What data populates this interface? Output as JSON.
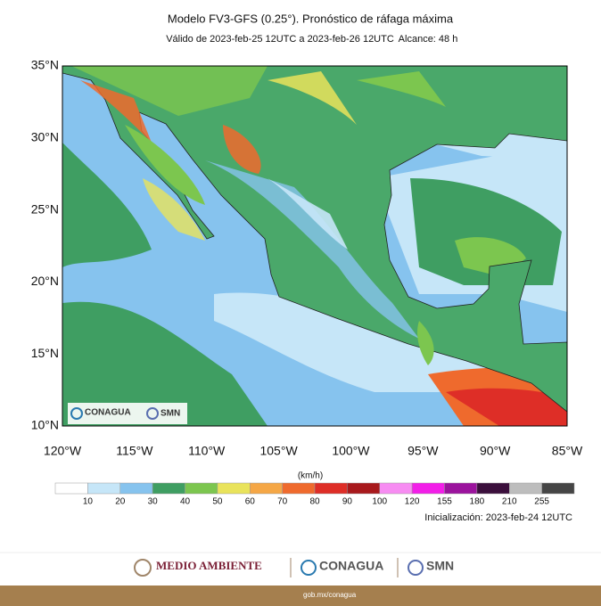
{
  "header": {
    "title": "Modelo FV3-GFS (0.25°). Pronóstico de ráfaga máxima",
    "subtitle": "Válido de 2023-feb-25 12UTC a 2023-feb-26 12UTC",
    "range": "Alcance: 48 h"
  },
  "map": {
    "lat_labels": [
      "35°N",
      "30°N",
      "25°N",
      "20°N",
      "15°N",
      "10°N"
    ],
    "lon_labels": [
      "120°W",
      "115°W",
      "110°W",
      "105°W",
      "100°W",
      "95°W",
      "90°W",
      "85°W"
    ],
    "logos": [
      "CONAGUA",
      "SMN"
    ]
  },
  "colorbar": {
    "unit": "(km/h)",
    "labels": [
      10,
      20,
      30,
      40,
      50,
      60,
      70,
      80,
      90,
      100,
      120,
      155,
      180,
      210,
      255
    ],
    "colors": [
      "#ffffff",
      "#c6e6f8",
      "#86c3ee",
      "#3f9e62",
      "#7cc64f",
      "#e9e35b",
      "#f5a746",
      "#ef6a2d",
      "#de2e27",
      "#a8191c",
      "#f78cf2",
      "#f21ee8",
      "#9b139d",
      "#3b0f3c",
      "#bdbdbd",
      "#454545"
    ]
  },
  "init": "Inicialización: 2023-feb-24 12UTC",
  "footer": {
    "logos": [
      "MEDIO AMBIENTE",
      "CONAGUA",
      "SMN"
    ],
    "url": "gob.mx/conagua"
  }
}
